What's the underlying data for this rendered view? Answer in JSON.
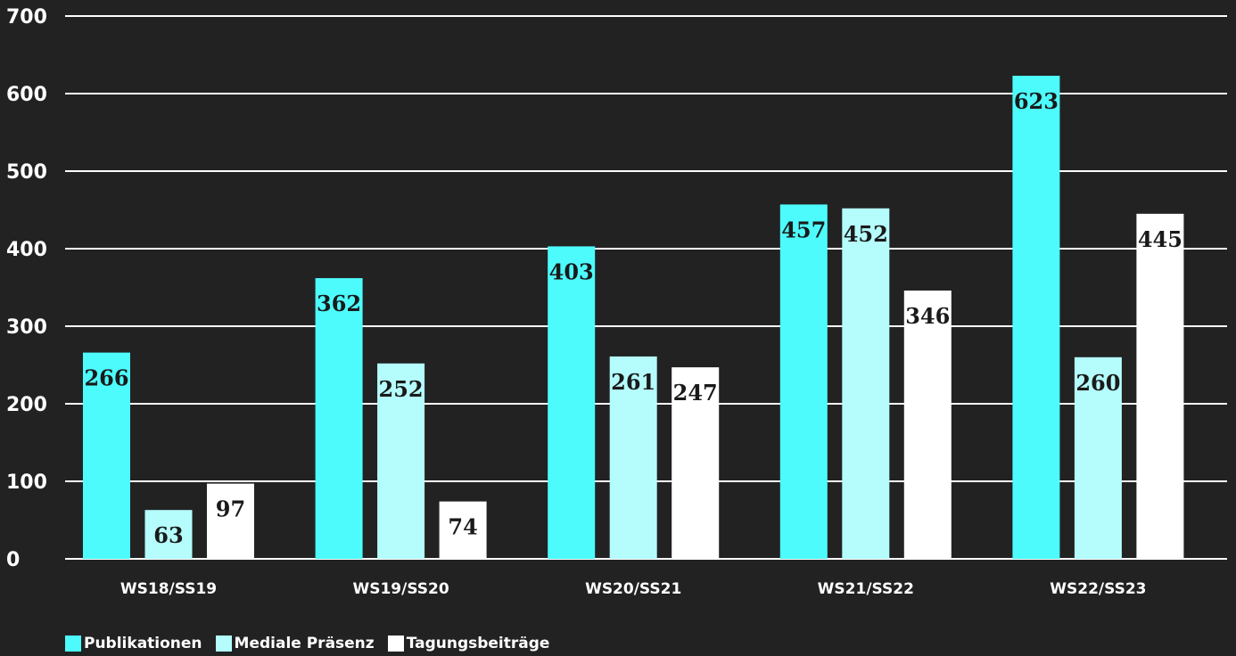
{
  "chart_data": {
    "type": "bar",
    "categories": [
      "WS18/SS19",
      "WS19/SS20",
      "WS20/SS21",
      "WS21/SS22",
      "WS22/SS23"
    ],
    "series": [
      {
        "name": "Publikationen",
        "values": [
          266,
          362,
          403,
          457,
          623
        ],
        "color": "#4dfbfd"
      },
      {
        "name": "Mediale Präsenz",
        "values": [
          63,
          252,
          261,
          452,
          260
        ],
        "color": "#b5fcfd"
      },
      {
        "name": "Tagungsbeiträge",
        "values": [
          97,
          74,
          247,
          346,
          445
        ],
        "color": "#ffffff"
      }
    ],
    "ylim": [
      0,
      700
    ],
    "yticks": [
      0,
      100,
      200,
      300,
      400,
      500,
      600,
      700
    ],
    "grid": true,
    "legend_position": "bottom-left",
    "background_color": "#222222",
    "grid_color": "#ffffff",
    "label_color": "#1a1a1a"
  }
}
